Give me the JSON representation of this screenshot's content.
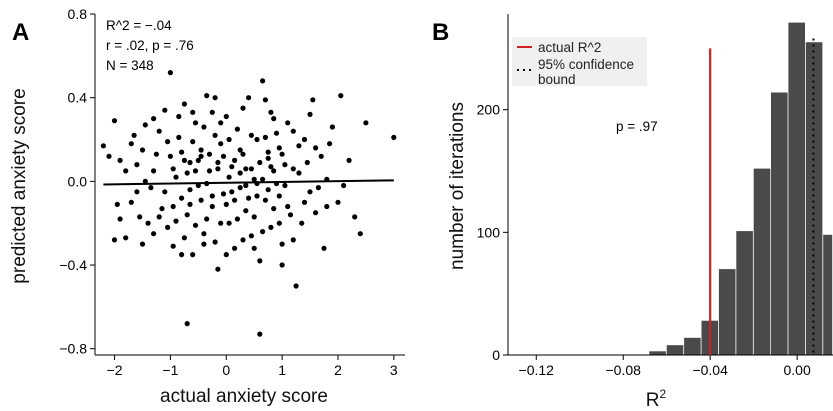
{
  "panels": {
    "a_letter": "A",
    "b_letter": "B"
  },
  "chart_data": [
    {
      "type": "scatter",
      "panel": "A",
      "xlabel": "actual anxiety score",
      "ylabel": "predicted anxiety score",
      "xlim": [
        -2.35,
        3.2
      ],
      "ylim": [
        -0.83,
        0.8
      ],
      "x_ticks": [
        -2,
        -1,
        0,
        1,
        2,
        3
      ],
      "x_tick_labels": [
        "−2",
        "−1",
        "0",
        "1",
        "2",
        "3"
      ],
      "y_ticks": [
        -0.8,
        -0.4,
        0.0,
        0.4,
        0.8
      ],
      "y_tick_labels": [
        "−0.8",
        "−0.4",
        "0.0",
        "0.4",
        "0.8"
      ],
      "annotations": [
        "R^2 = −.04",
        "r = .02, p = .76",
        "N = 348"
      ],
      "fit_line": {
        "x": [
          -2.2,
          3.0
        ],
        "y": [
          -0.015,
          0.005
        ]
      },
      "point_color": "#000000",
      "points": [
        [
          -2.2,
          0.17
        ],
        [
          -2.1,
          0.12
        ],
        [
          -2.0,
          0.29
        ],
        [
          -2.0,
          -0.28
        ],
        [
          -1.95,
          -0.11
        ],
        [
          -1.9,
          0.1
        ],
        [
          -1.8,
          -0.27
        ],
        [
          -1.7,
          0.18
        ],
        [
          -1.6,
          0.08
        ],
        [
          -1.6,
          -0.05
        ],
        [
          -1.55,
          -0.17
        ],
        [
          -1.5,
          0.15
        ],
        [
          -1.45,
          0.27
        ],
        [
          -1.4,
          -0.2
        ],
        [
          -1.35,
          -0.03
        ],
        [
          -1.3,
          0.05
        ],
        [
          -1.2,
          0.24
        ],
        [
          -1.15,
          -0.13
        ],
        [
          -1.1,
          0.34
        ],
        [
          -1.05,
          -0.22
        ],
        [
          -1.0,
          0.52
        ],
        [
          -1.0,
          0.12
        ],
        [
          -0.95,
          -0.31
        ],
        [
          -0.9,
          0.02
        ],
        [
          -0.85,
          0.21
        ],
        [
          -0.8,
          -0.08
        ],
        [
          -0.75,
          0.37
        ],
        [
          -0.7,
          -0.16
        ],
        [
          -0.65,
          0.09
        ],
        [
          -0.6,
          -0.35
        ],
        [
          -0.55,
          0.28
        ],
        [
          -0.5,
          -0.02
        ],
        [
          -0.45,
          0.15
        ],
        [
          -0.4,
          -0.25
        ],
        [
          -0.35,
          0.41
        ],
        [
          -0.3,
          0.05
        ],
        [
          -0.25,
          -0.12
        ],
        [
          -0.2,
          0.22
        ],
        [
          -0.15,
          -0.42
        ],
        [
          -0.1,
          0.18
        ],
        [
          -0.05,
          -0.06
        ],
        [
          0.0,
          0.31
        ],
        [
          0.05,
          -0.2
        ],
        [
          0.1,
          0.07
        ],
        [
          0.15,
          -0.32
        ],
        [
          0.2,
          0.25
        ],
        [
          0.25,
          -0.03
        ],
        [
          0.3,
          0.13
        ],
        [
          0.35,
          -0.14
        ],
        [
          0.4,
          0.4
        ],
        [
          0.45,
          -0.26
        ],
        [
          0.5,
          0.01
        ],
        [
          0.55,
          0.2
        ],
        [
          0.6,
          -0.38
        ],
        [
          0.65,
          0.48
        ],
        [
          0.7,
          -0.09
        ],
        [
          0.75,
          0.11
        ],
        [
          0.8,
          -0.22
        ],
        [
          0.85,
          0.3
        ],
        [
          0.9,
          -0.01
        ],
        [
          0.95,
          0.16
        ],
        [
          1.0,
          -0.3
        ],
        [
          1.05,
          0.08
        ],
        [
          1.1,
          -0.12
        ],
        [
          1.2,
          0.24
        ],
        [
          1.25,
          -0.5
        ],
        [
          1.3,
          0.04
        ],
        [
          1.35,
          -0.2
        ],
        [
          1.4,
          0.2
        ],
        [
          1.5,
          -0.05
        ],
        [
          1.55,
          0.39
        ],
        [
          1.6,
          -0.15
        ],
        [
          1.7,
          0.12
        ],
        [
          1.75,
          -0.32
        ],
        [
          1.8,
          0.01
        ],
        [
          1.9,
          0.26
        ],
        [
          2.0,
          -0.1
        ],
        [
          2.05,
          0.41
        ],
        [
          2.1,
          -0.02
        ],
        [
          2.2,
          0.1
        ],
        [
          2.3,
          -0.17
        ],
        [
          2.4,
          -0.25
        ],
        [
          2.5,
          0.28
        ],
        [
          3.0,
          0.21
        ],
        [
          -0.7,
          -0.68
        ],
        [
          0.6,
          -0.73
        ],
        [
          -1.8,
          0.05
        ],
        [
          -1.7,
          -0.1
        ],
        [
          -1.65,
          0.22
        ],
        [
          -1.5,
          -0.3
        ],
        [
          -1.45,
          0.0
        ],
        [
          -1.3,
          -0.25
        ],
        [
          -1.25,
          0.13
        ],
        [
          -1.1,
          -0.05
        ],
        [
          -1.05,
          0.19
        ],
        [
          -0.95,
          0.06
        ],
        [
          -0.9,
          -0.19
        ],
        [
          -0.85,
          0.31
        ],
        [
          -0.8,
          0.14
        ],
        [
          -0.75,
          -0.27
        ],
        [
          -0.7,
          0.04
        ],
        [
          -0.65,
          -0.04
        ],
        [
          -0.6,
          0.19
        ],
        [
          -0.55,
          -0.21
        ],
        [
          -0.5,
          0.1
        ],
        [
          -0.45,
          -0.09
        ],
        [
          -0.4,
          0.26
        ],
        [
          -0.35,
          -0.18
        ],
        [
          -0.3,
          0.13
        ],
        [
          -0.25,
          0.33
        ],
        [
          -0.2,
          -0.29
        ],
        [
          -0.15,
          0.06
        ],
        [
          -0.1,
          -0.2
        ],
        [
          -0.05,
          0.12
        ],
        [
          0.0,
          -0.11
        ],
        [
          0.05,
          0.2
        ],
        [
          0.1,
          -0.05
        ],
        [
          0.15,
          0.1
        ],
        [
          0.2,
          -0.18
        ],
        [
          0.25,
          0.15
        ],
        [
          0.3,
          -0.28
        ],
        [
          0.35,
          0.06
        ],
        [
          0.4,
          -0.08
        ],
        [
          0.45,
          0.22
        ],
        [
          0.5,
          -0.17
        ],
        [
          0.55,
          -0.01
        ],
        [
          0.6,
          0.09
        ],
        [
          0.65,
          -0.24
        ],
        [
          0.7,
          0.21
        ],
        [
          0.75,
          -0.04
        ],
        [
          0.8,
          0.07
        ],
        [
          0.85,
          -0.13
        ],
        [
          0.9,
          0.23
        ],
        [
          0.95,
          -0.2
        ],
        [
          1.0,
          0.13
        ],
        [
          1.05,
          -0.02
        ],
        [
          1.1,
          0.28
        ],
        [
          1.15,
          -0.16
        ],
        [
          1.2,
          0.06
        ],
        [
          1.3,
          0.17
        ],
        [
          1.4,
          -0.1
        ],
        [
          1.45,
          0.09
        ],
        [
          1.6,
          0.16
        ],
        [
          1.65,
          -0.03
        ],
        [
          1.8,
          -0.12
        ],
        [
          1.85,
          0.18
        ],
        [
          -1.9,
          -0.18
        ],
        [
          -1.2,
          -0.17
        ],
        [
          -0.6,
          0.33
        ],
        [
          -0.1,
          0.28
        ],
        [
          0.3,
          0.35
        ],
        [
          0.8,
          0.33
        ],
        [
          1.2,
          -0.28
        ],
        [
          -0.4,
          -0.3
        ],
        [
          0.0,
          -0.35
        ],
        [
          0.5,
          -0.32
        ],
        [
          1.0,
          -0.4
        ],
        [
          -0.8,
          -0.35
        ],
        [
          -1.3,
          0.3
        ],
        [
          -0.2,
          0.4
        ],
        [
          0.7,
          0.39
        ],
        [
          1.5,
          0.32
        ],
        [
          -0.55,
          0.05
        ],
        [
          -0.35,
          -0.01
        ],
        [
          -0.15,
          0.09
        ],
        [
          0.05,
          0.02
        ],
        [
          0.25,
          0.04
        ],
        [
          0.45,
          0.06
        ],
        [
          0.65,
          0.01
        ],
        [
          0.85,
          0.05
        ],
        [
          -0.75,
          0.1
        ],
        [
          -0.45,
          0.12
        ],
        [
          0.15,
          -0.09
        ],
        [
          0.35,
          -0.02
        ],
        [
          0.55,
          -0.07
        ],
        [
          0.75,
          0.14
        ],
        [
          -0.95,
          -0.12
        ],
        [
          -0.65,
          -0.11
        ],
        [
          -0.25,
          -0.07
        ],
        [
          0.95,
          -0.07
        ]
      ]
    },
    {
      "type": "bar",
      "panel": "B",
      "xlabel": "R",
      "xlabel_superscript": "2",
      "ylabel": "number of iterations",
      "xlim": [
        -0.133,
        0.0165
      ],
      "ylim": [
        0,
        278
      ],
      "x_ticks": [
        -0.12,
        -0.08,
        -0.04,
        0.0
      ],
      "x_tick_labels": [
        "−0.12",
        "−0.08",
        "−0.04",
        "0.00"
      ],
      "y_ticks": [
        0,
        100,
        200
      ],
      "y_tick_labels": [
        "0",
        "100",
        "200"
      ],
      "bin_width": 0.008,
      "bins_left": [
        -0.068,
        -0.06,
        -0.052,
        -0.044,
        -0.036,
        -0.028,
        -0.02,
        -0.012,
        -0.004,
        0.004,
        0.012
      ],
      "counts": [
        3,
        8,
        14,
        28,
        70,
        101,
        152,
        214,
        271,
        255,
        98
      ],
      "bar_color": "#4a4a4a",
      "actual_line": {
        "x": -0.04,
        "color": "#cc2222",
        "label": "actual R^2"
      },
      "ci_line": {
        "x": 0.0075,
        "label_line1": "95% confidence",
        "label_line2": "bound"
      },
      "p_text": "p = .97"
    }
  ]
}
